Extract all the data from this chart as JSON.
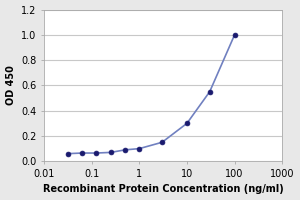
{
  "x_data": [
    0.03125,
    0.0625,
    0.125,
    0.25,
    0.5,
    1.0,
    3.0,
    10.0,
    30.0,
    100.0
  ],
  "y_data": [
    0.06,
    0.065,
    0.065,
    0.07,
    0.09,
    0.1,
    0.15,
    0.3,
    0.55,
    1.0
  ],
  "xlabel": "Recombinant Protein Concentration (ng/ml)",
  "ylabel": "OD 450",
  "xlim": [
    0.01,
    1000
  ],
  "ylim": [
    0,
    1.2
  ],
  "yticks": [
    0,
    0.2,
    0.4,
    0.6,
    0.8,
    1.0,
    1.2
  ],
  "xtick_positions": [
    0.01,
    0.1,
    1,
    10,
    100,
    1000
  ],
  "xtick_labels": [
    "0.01",
    "0.1",
    "1",
    "10",
    "100",
    "1000"
  ],
  "line_color": "#7080c0",
  "marker_color": "#1a1a6e",
  "plot_bg_color": "#ffffff",
  "fig_bg_color": "#e8e8e8",
  "grid_color": "#c8c8c8",
  "spine_color": "#aaaaaa",
  "marker": "o",
  "markersize": 3.5,
  "linewidth": 1.2,
  "xlabel_fontsize": 7,
  "ylabel_fontsize": 7,
  "tick_fontsize": 7
}
